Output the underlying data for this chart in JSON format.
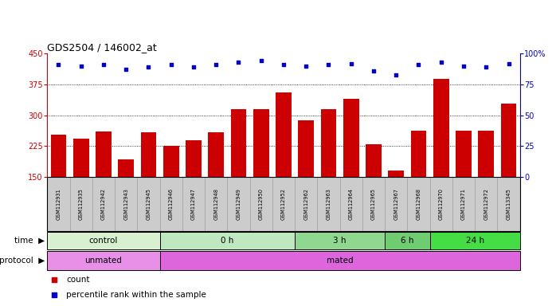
{
  "title": "GDS2504 / 146002_at",
  "samples": [
    "GSM112931",
    "GSM112935",
    "GSM112942",
    "GSM112943",
    "GSM112945",
    "GSM112946",
    "GSM112947",
    "GSM112948",
    "GSM112949",
    "GSM112950",
    "GSM112952",
    "GSM112962",
    "GSM112963",
    "GSM112964",
    "GSM112965",
    "GSM112967",
    "GSM112968",
    "GSM112970",
    "GSM112971",
    "GSM112972",
    "GSM113345"
  ],
  "counts": [
    252,
    243,
    260,
    193,
    258,
    225,
    240,
    258,
    315,
    315,
    355,
    287,
    315,
    340,
    230,
    165,
    263,
    388,
    263,
    263,
    328
  ],
  "percentile_ranks": [
    91,
    90,
    91,
    87,
    89,
    91,
    89,
    91,
    93,
    94,
    91,
    90,
    91,
    92,
    86,
    83,
    91,
    93,
    90,
    89,
    92
  ],
  "ylim_left": [
    150,
    450
  ],
  "ylim_right": [
    0,
    100
  ],
  "yticks_left": [
    150,
    225,
    300,
    375,
    450
  ],
  "yticks_right": [
    0,
    25,
    50,
    75,
    100
  ],
  "bar_color": "#cc0000",
  "dot_color": "#0000cc",
  "time_groups": [
    {
      "label": "control",
      "start": 0,
      "end": 5,
      "color": "#d8f0d0"
    },
    {
      "label": "0 h",
      "start": 5,
      "end": 11,
      "color": "#c0e8c0"
    },
    {
      "label": "3 h",
      "start": 11,
      "end": 15,
      "color": "#90d890"
    },
    {
      "label": "6 h",
      "start": 15,
      "end": 17,
      "color": "#70cc70"
    },
    {
      "label": "24 h",
      "start": 17,
      "end": 21,
      "color": "#44dd44"
    }
  ],
  "protocol_groups": [
    {
      "label": "unmated",
      "start": 0,
      "end": 5,
      "color": "#e890e8"
    },
    {
      "label": "mated",
      "start": 5,
      "end": 21,
      "color": "#dd66dd"
    }
  ],
  "tick_label_bg": "#cccccc",
  "legend_count_color": "#cc0000",
  "legend_dot_color": "#0000cc"
}
